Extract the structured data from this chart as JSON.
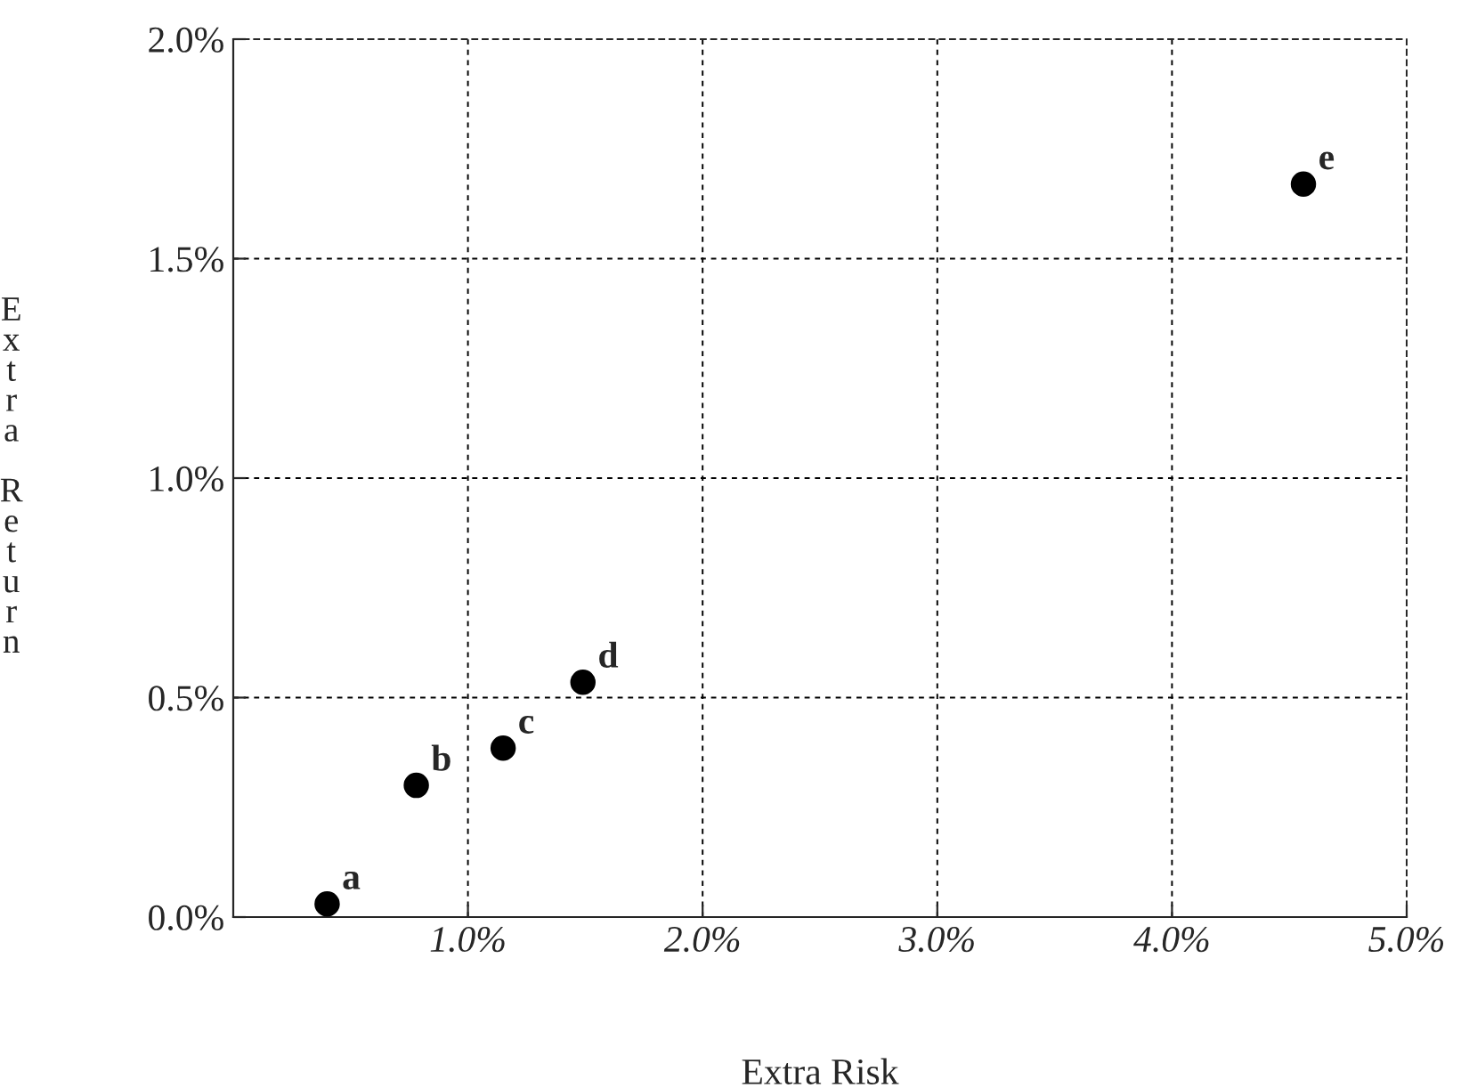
{
  "chart_data": {
    "type": "scatter",
    "xlabel": "Extra Risk",
    "ylabel": "Extra Return",
    "x": [
      0.4,
      0.78,
      1.15,
      1.49,
      4.56
    ],
    "values": [
      0.03,
      0.3,
      0.385,
      0.535,
      1.67
    ],
    "color": "#000000",
    "marker": "circle",
    "xlim": [
      0,
      5
    ],
    "xticks": [
      {
        "value": 1,
        "label": "1.0%"
      },
      {
        "value": 2,
        "label": "2.0%"
      },
      {
        "value": 3,
        "label": "3.0%"
      },
      {
        "value": 4,
        "label": "4.0%"
      },
      {
        "value": 5,
        "label": "5.0%"
      }
    ],
    "ylim": [
      0,
      2
    ],
    "yticks": [
      {
        "value": 0,
        "label": "0.0%"
      },
      {
        "value": 0.5,
        "label": "0.5%"
      },
      {
        "value": 1,
        "label": "1.0%"
      },
      {
        "value": 1.5,
        "label": "1.5%"
      },
      {
        "value": 2,
        "label": "2.0%"
      }
    ],
    "grid": true,
    "annotations": [
      {
        "text": "a",
        "x": 0.4,
        "y": 0.03
      },
      {
        "text": "b",
        "x": 0.78,
        "y": 0.3
      },
      {
        "text": "c",
        "x": 1.15,
        "y": 0.385
      },
      {
        "text": "d",
        "x": 1.49,
        "y": 0.535
      },
      {
        "text": "e",
        "x": 4.56,
        "y": 1.67
      }
    ]
  }
}
